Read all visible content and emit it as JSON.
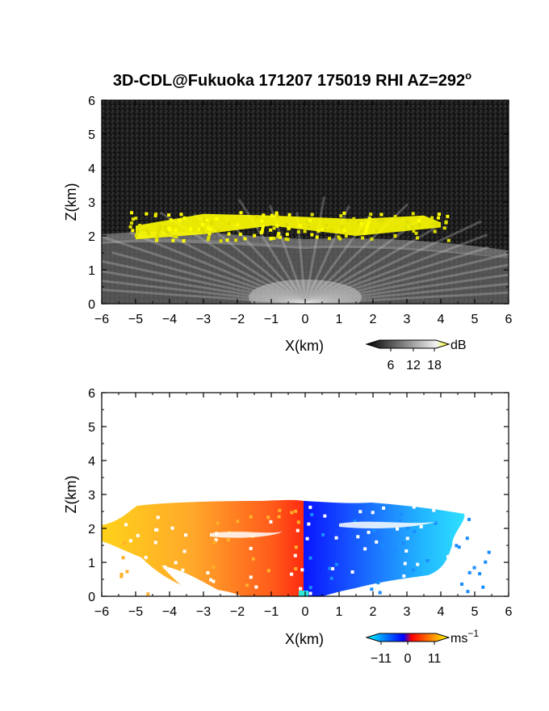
{
  "figure": {
    "title": "3D-CDL@Fukuoka 171207 175019 RHI AZ=292",
    "title_superscript": "o"
  },
  "chart_data": [
    {
      "type": "heatmap",
      "panel": "top",
      "xlabel": "X(km)",
      "ylabel": "Z(km)",
      "xlim": [
        -6,
        6
      ],
      "ylim": [
        0,
        6
      ],
      "xticks": [
        -6,
        -5,
        -4,
        -3,
        -2,
        -1,
        0,
        1,
        2,
        3,
        4,
        5,
        6
      ],
      "yticks": [
        0,
        1,
        2,
        3,
        4,
        5,
        6
      ],
      "xtick_labels": [
        "−6",
        "−5",
        "−4",
        "−3",
        "−2",
        "−1",
        "0",
        "1",
        "2",
        "3",
        "4",
        "5",
        "6"
      ],
      "ytick_labels": [
        "0",
        "1",
        "2",
        "3",
        "4",
        "5",
        "6"
      ],
      "colorbar": {
        "unit": "dB",
        "ticks": [
          6,
          12,
          18
        ],
        "tick_labels": [
          "6",
          "12",
          "18"
        ],
        "range": [
          0,
          20
        ],
        "colors": [
          "#000000",
          "#ffffff",
          "#ffff00"
        ]
      },
      "background_color": "#1c1c1c",
      "features": {
        "yellow_layer_top_km": [
          [
            -5.0,
            2.3
          ],
          [
            -3.0,
            2.65
          ],
          [
            -1.0,
            2.6
          ],
          [
            1.5,
            2.5
          ],
          [
            3.5,
            2.6
          ],
          [
            4.0,
            2.4
          ]
        ],
        "yellow_layer_bottom_km": [
          [
            -5.0,
            1.9
          ],
          [
            -3.0,
            2.05
          ],
          [
            -1.0,
            2.3
          ],
          [
            1.5,
            2.0
          ],
          [
            3.5,
            2.2
          ],
          [
            4.0,
            2.25
          ]
        ],
        "highlight_color": "#ffff00"
      }
    },
    {
      "type": "heatmap",
      "panel": "bottom",
      "xlabel": "X(km)",
      "ylabel": "Z(km)",
      "xlim": [
        -6,
        6
      ],
      "ylim": [
        0,
        6
      ],
      "xticks": [
        -6,
        -5,
        -4,
        -3,
        -2,
        -1,
        0,
        1,
        2,
        3,
        4,
        5,
        6
      ],
      "yticks": [
        0,
        1,
        2,
        3,
        4,
        5,
        6
      ],
      "xtick_labels": [
        "−6",
        "−5",
        "−4",
        "−3",
        "−2",
        "−1",
        "0",
        "1",
        "2",
        "3",
        "4",
        "5",
        "6"
      ],
      "ytick_labels": [
        "0",
        "1",
        "2",
        "3",
        "4",
        "5",
        "6"
      ],
      "colorbar": {
        "unit": "ms",
        "unit_superscript": "−1",
        "ticks": [
          -11,
          0,
          11
        ],
        "tick_labels": [
          "−11",
          "0",
          "11"
        ],
        "range": [
          -15,
          15
        ],
        "colors": [
          "#00ffff",
          "#0000ff",
          "#ff0000",
          "#ffff00"
        ]
      },
      "background_color": "#ffffff",
      "features": {
        "echo_top_km": [
          [
            -5.0,
            2.55
          ],
          [
            -3.0,
            2.7
          ],
          [
            -1.0,
            2.75
          ],
          [
            1.5,
            2.6
          ],
          [
            3.5,
            2.5
          ],
          [
            4.5,
            2.3
          ]
        ],
        "echo_bottom_km": 0.0,
        "velocity_sign_change_x_km": 0.0
      }
    }
  ]
}
